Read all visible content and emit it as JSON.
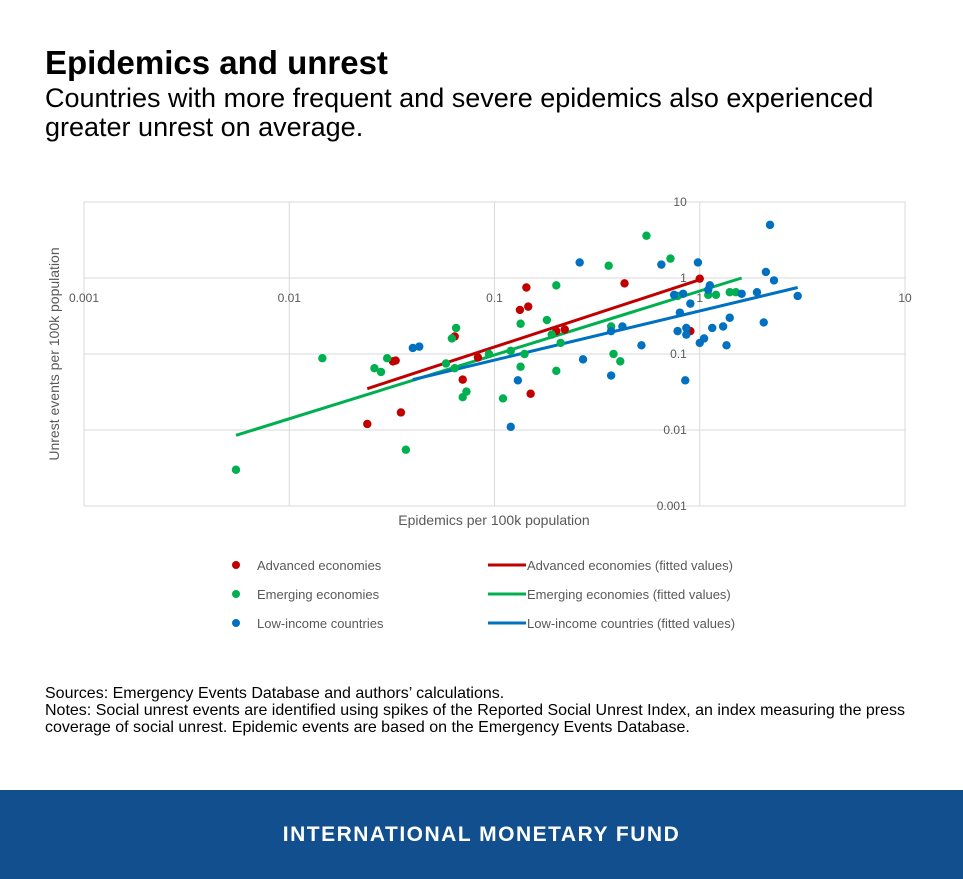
{
  "header": {
    "title": "Epidemics and unrest",
    "subtitle": "Countries with more frequent and severe epidemics also experienced greater unrest on average."
  },
  "chart_data": {
    "type": "scatter",
    "xlabel": "Epidemics per 100k population",
    "ylabel": "Unrest events per 100k population",
    "x_scale": "log",
    "y_scale": "log",
    "xlim": [
      0.001,
      10
    ],
    "ylim": [
      0.001,
      10
    ],
    "x_ticks": [
      "0.001",
      "0.01",
      "0.1",
      "1",
      "10"
    ],
    "y_ticks": [
      "0.001",
      "0.01",
      "0.1",
      "1",
      "10"
    ],
    "grid": true,
    "legend_position": "bottom",
    "series": [
      {
        "name": "Advanced economies",
        "kind": "points",
        "color": "#c00000",
        "points": [
          [
            0.032,
            0.08
          ],
          [
            0.033,
            0.082
          ],
          [
            0.024,
            0.012
          ],
          [
            0.035,
            0.017
          ],
          [
            0.07,
            0.046
          ],
          [
            0.083,
            0.09
          ],
          [
            0.064,
            0.17
          ],
          [
            0.133,
            0.38
          ],
          [
            0.143,
            0.75
          ],
          [
            0.146,
            0.42
          ],
          [
            0.15,
            0.03
          ],
          [
            0.2,
            0.2
          ],
          [
            0.22,
            0.21
          ],
          [
            0.43,
            0.85
          ],
          [
            1.0,
            0.98
          ],
          [
            0.9,
            0.2
          ]
        ]
      },
      {
        "name": "Emerging economies",
        "kind": "points",
        "color": "#00b050",
        "points": [
          [
            0.0055,
            0.003
          ],
          [
            0.0145,
            0.088
          ],
          [
            0.026,
            0.065
          ],
          [
            0.028,
            0.058
          ],
          [
            0.03,
            0.088
          ],
          [
            0.037,
            0.0055
          ],
          [
            0.058,
            0.075
          ],
          [
            0.062,
            0.16
          ],
          [
            0.064,
            0.065
          ],
          [
            0.065,
            0.22
          ],
          [
            0.07,
            0.027
          ],
          [
            0.073,
            0.032
          ],
          [
            0.094,
            0.1
          ],
          [
            0.11,
            0.026
          ],
          [
            0.12,
            0.11
          ],
          [
            0.134,
            0.068
          ],
          [
            0.134,
            0.25
          ],
          [
            0.14,
            0.1
          ],
          [
            0.18,
            0.28
          ],
          [
            0.19,
            0.18
          ],
          [
            0.2,
            0.8
          ],
          [
            0.2,
            0.06
          ],
          [
            0.21,
            0.14
          ],
          [
            0.36,
            1.45
          ],
          [
            0.37,
            0.23
          ],
          [
            0.38,
            0.1
          ],
          [
            0.41,
            0.08
          ],
          [
            0.55,
            3.6
          ],
          [
            0.72,
            1.8
          ],
          [
            0.78,
            0.58
          ],
          [
            1.1,
            0.6
          ],
          [
            1.2,
            0.6
          ],
          [
            1.4,
            0.65
          ],
          [
            1.5,
            0.65
          ]
        ]
      },
      {
        "name": "Low-income countries",
        "kind": "points",
        "color": "#0070c0",
        "points": [
          [
            0.04,
            0.12
          ],
          [
            0.043,
            0.125
          ],
          [
            0.12,
            0.011
          ],
          [
            0.13,
            0.045
          ],
          [
            0.26,
            1.6
          ],
          [
            0.27,
            0.085
          ],
          [
            0.37,
            0.052
          ],
          [
            0.37,
            0.2
          ],
          [
            0.42,
            0.23
          ],
          [
            0.52,
            0.13
          ],
          [
            0.65,
            1.5
          ],
          [
            0.75,
            0.6
          ],
          [
            0.78,
            0.2
          ],
          [
            0.8,
            0.35
          ],
          [
            0.83,
            0.62
          ],
          [
            0.85,
            0.045
          ],
          [
            0.86,
            0.18
          ],
          [
            0.86,
            0.22
          ],
          [
            0.9,
            0.46
          ],
          [
            0.98,
            1.6
          ],
          [
            1.0,
            0.14
          ],
          [
            1.05,
            0.16
          ],
          [
            1.1,
            0.7
          ],
          [
            1.12,
            0.8
          ],
          [
            1.15,
            0.22
          ],
          [
            1.3,
            0.23
          ],
          [
            1.35,
            0.13
          ],
          [
            1.4,
            0.3
          ],
          [
            1.6,
            0.62
          ],
          [
            1.9,
            0.65
          ],
          [
            2.05,
            0.26
          ],
          [
            2.1,
            1.2
          ],
          [
            2.2,
            5.0
          ],
          [
            2.3,
            0.93
          ],
          [
            3.0,
            0.58
          ]
        ]
      },
      {
        "name": "Advanced economies (fitted values)",
        "kind": "line",
        "color": "#c00000",
        "points": [
          [
            0.024,
            0.035
          ],
          [
            1.0,
            0.95
          ]
        ]
      },
      {
        "name": "Emerging economies (fitted values)",
        "kind": "line",
        "color": "#00b050",
        "points": [
          [
            0.0055,
            0.0085
          ],
          [
            1.6,
            1.0
          ]
        ]
      },
      {
        "name": "Low-income countries (fitted values)",
        "kind": "line",
        "color": "#0070c0",
        "points": [
          [
            0.04,
            0.046
          ],
          [
            3.0,
            0.75
          ]
        ]
      }
    ],
    "legend": [
      {
        "label": "Advanced economies",
        "kind": "marker",
        "color": "#c00000"
      },
      {
        "label": "Emerging economies",
        "kind": "marker",
        "color": "#00b050"
      },
      {
        "label": "Low-income countries",
        "kind": "marker",
        "color": "#0070c0"
      },
      {
        "label": "Advanced economies (fitted values)",
        "kind": "line",
        "color": "#c00000"
      },
      {
        "label": "Emerging economies (fitted values)",
        "kind": "line",
        "color": "#00b050"
      },
      {
        "label": "Low-income countries (fitted values)",
        "kind": "line",
        "color": "#0070c0"
      }
    ]
  },
  "notes": {
    "sources": "Sources: Emergency Events Database and authors’ calculations.",
    "notes": "Notes: Social unrest events are identified using spikes of the Reported Social Unrest Index, an index measuring the press coverage of social unrest. Epidemic events are based on the Emergency Events Database."
  },
  "footer": {
    "text": "INTERNATIONAL MONETARY FUND",
    "background": "#114f8f"
  }
}
